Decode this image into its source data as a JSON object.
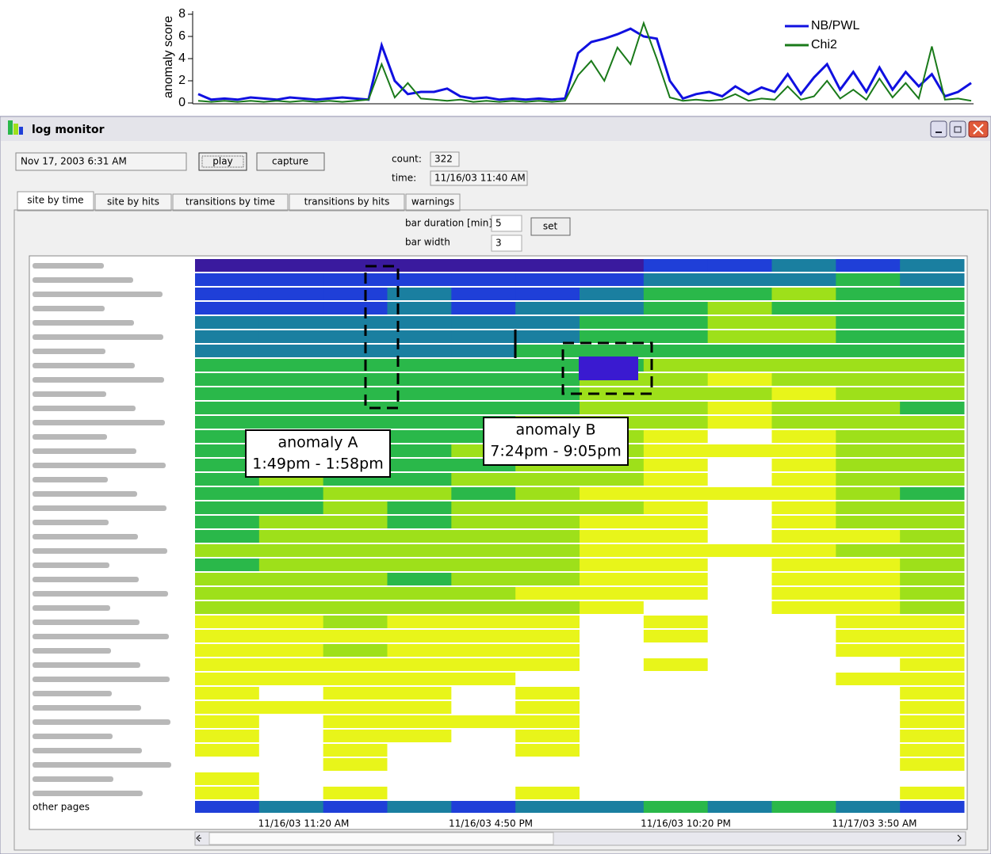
{
  "chart_data": {
    "type": "line",
    "y_label": "anomaly score",
    "ylim": [
      0,
      8
    ],
    "yticks": [
      0,
      2,
      4,
      6,
      8
    ],
    "legend": "upper-right",
    "series": [
      {
        "name": "NB/PWL",
        "color": "#1010e0",
        "values": [
          0.8,
          0.3,
          0.4,
          0.3,
          0.5,
          0.4,
          0.3,
          0.5,
          0.4,
          0.3,
          0.4,
          0.5,
          0.4,
          0.3,
          5.2,
          2.0,
          0.8,
          1.0,
          1.0,
          1.3,
          0.6,
          0.4,
          0.5,
          0.3,
          0.4,
          0.3,
          0.4,
          0.3,
          0.4,
          4.5,
          5.5,
          5.8,
          6.2,
          6.7,
          6.0,
          5.8,
          2.0,
          0.4,
          0.8,
          1.0,
          0.6,
          1.5,
          0.8,
          1.4,
          1.0,
          2.6,
          0.8,
          2.3,
          3.5,
          1.2,
          2.8,
          1.0,
          3.2,
          1.2,
          2.8,
          1.5,
          2.6,
          0.6,
          1.0,
          1.8
        ]
      },
      {
        "name": "Chi2",
        "color": "#1a7a1a",
        "values": [
          0.2,
          0.1,
          0.2,
          0.1,
          0.2,
          0.1,
          0.2,
          0.1,
          0.2,
          0.1,
          0.2,
          0.1,
          0.2,
          0.3,
          3.5,
          0.5,
          1.8,
          0.4,
          0.3,
          0.2,
          0.3,
          0.1,
          0.2,
          0.1,
          0.2,
          0.1,
          0.2,
          0.1,
          0.2,
          2.5,
          3.8,
          2.0,
          5.0,
          3.5,
          7.2,
          4.0,
          0.5,
          0.2,
          0.3,
          0.2,
          0.3,
          0.8,
          0.2,
          0.4,
          0.3,
          1.5,
          0.3,
          0.6,
          2.0,
          0.4,
          1.2,
          0.3,
          2.2,
          0.5,
          1.8,
          0.4,
          5.1,
          0.3,
          0.4,
          0.2
        ]
      }
    ]
  },
  "window": {
    "title": "log monitor",
    "date_field": "Nov 17, 2003 6:31 AM",
    "play": "play",
    "capture": "capture",
    "count_label": "count:",
    "count": 322,
    "time_label": "time:",
    "time": "11/16/03 11:40 AM",
    "tabs": [
      "site by time",
      "site by hits",
      "transitions by time",
      "transitions by hits",
      "warnings"
    ],
    "bar_duration_label": "bar duration [min]",
    "bar_duration": 5,
    "bar_width_label": "bar width",
    "bar_width": 3,
    "set": "set"
  },
  "heatmap": {
    "level_colors": [
      "#3a1a9e",
      "#1f3fd8",
      "#1a7fa0",
      "#2ab84a",
      "#9ee01a",
      "#e8f51a",
      "#ffffff"
    ],
    "rows": [
      [
        0,
        0,
        0,
        0,
        0,
        0,
        0,
        1,
        1,
        2,
        1,
        2
      ],
      [
        1,
        1,
        1,
        1,
        1,
        1,
        1,
        2,
        2,
        2,
        3,
        2
      ],
      [
        1,
        1,
        1,
        2,
        1,
        1,
        2,
        3,
        3,
        4,
        3,
        3
      ],
      [
        1,
        1,
        1,
        2,
        1,
        2,
        2,
        3,
        4,
        3,
        3,
        3
      ],
      [
        2,
        2,
        2,
        2,
        2,
        2,
        3,
        3,
        4,
        4,
        3,
        3
      ],
      [
        2,
        2,
        2,
        2,
        2,
        2,
        3,
        3,
        4,
        4,
        3,
        3
      ],
      [
        2,
        2,
        2,
        2,
        2,
        3,
        3,
        3,
        3,
        3,
        3,
        3
      ],
      [
        3,
        3,
        3,
        3,
        3,
        3,
        3,
        4,
        4,
        4,
        4,
        4
      ],
      [
        3,
        3,
        3,
        3,
        3,
        3,
        4,
        4,
        5,
        4,
        4,
        4
      ],
      [
        3,
        3,
        3,
        3,
        3,
        3,
        4,
        4,
        4,
        5,
        4,
        4
      ],
      [
        3,
        3,
        3,
        3,
        3,
        3,
        4,
        4,
        5,
        4,
        4,
        3
      ],
      [
        3,
        3,
        3,
        3,
        3,
        4,
        4,
        4,
        5,
        4,
        4,
        4
      ],
      [
        3,
        3,
        4,
        3,
        3,
        4,
        4,
        5,
        6,
        5,
        4,
        4
      ],
      [
        3,
        3,
        3,
        3,
        4,
        4,
        4,
        5,
        5,
        5,
        4,
        4
      ],
      [
        3,
        3,
        4,
        3,
        3,
        4,
        4,
        5,
        6,
        5,
        4,
        4
      ],
      [
        3,
        4,
        3,
        3,
        4,
        4,
        4,
        5,
        6,
        5,
        4,
        4
      ],
      [
        3,
        3,
        4,
        4,
        3,
        4,
        5,
        5,
        5,
        5,
        4,
        3
      ],
      [
        3,
        3,
        4,
        3,
        4,
        4,
        4,
        5,
        6,
        5,
        4,
        4
      ],
      [
        3,
        4,
        4,
        3,
        4,
        4,
        5,
        5,
        6,
        5,
        4,
        4
      ],
      [
        3,
        4,
        4,
        4,
        4,
        4,
        5,
        5,
        6,
        5,
        5,
        4
      ],
      [
        4,
        4,
        4,
        4,
        4,
        4,
        5,
        5,
        5,
        5,
        4,
        4
      ],
      [
        3,
        4,
        4,
        4,
        4,
        4,
        5,
        5,
        6,
        5,
        5,
        4
      ],
      [
        4,
        4,
        4,
        3,
        4,
        4,
        5,
        5,
        6,
        5,
        5,
        4
      ],
      [
        4,
        4,
        4,
        4,
        4,
        5,
        5,
        5,
        6,
        5,
        5,
        4
      ],
      [
        4,
        4,
        4,
        4,
        4,
        4,
        5,
        6,
        6,
        5,
        5,
        4
      ],
      [
        5,
        5,
        4,
        5,
        5,
        5,
        6,
        5,
        6,
        6,
        5,
        5
      ],
      [
        5,
        5,
        5,
        5,
        5,
        5,
        6,
        5,
        6,
        6,
        5,
        5
      ],
      [
        5,
        5,
        4,
        5,
        5,
        5,
        6,
        6,
        6,
        6,
        5,
        5
      ],
      [
        5,
        5,
        5,
        5,
        5,
        5,
        6,
        5,
        6,
        6,
        6,
        5
      ],
      [
        5,
        5,
        5,
        5,
        5,
        6,
        6,
        6,
        6,
        6,
        5,
        5
      ],
      [
        5,
        6,
        5,
        5,
        6,
        5,
        6,
        6,
        6,
        6,
        6,
        5
      ],
      [
        5,
        5,
        5,
        5,
        6,
        5,
        6,
        6,
        6,
        6,
        6,
        5
      ],
      [
        5,
        6,
        5,
        5,
        5,
        5,
        6,
        6,
        6,
        6,
        6,
        5
      ],
      [
        5,
        6,
        5,
        5,
        6,
        5,
        6,
        6,
        6,
        6,
        6,
        5
      ],
      [
        5,
        6,
        5,
        6,
        6,
        5,
        6,
        6,
        6,
        6,
        6,
        5
      ],
      [
        6,
        6,
        5,
        6,
        6,
        6,
        6,
        6,
        6,
        6,
        6,
        5
      ],
      [
        5,
        6,
        6,
        6,
        6,
        6,
        6,
        6,
        6,
        6,
        6,
        6
      ],
      [
        5,
        6,
        5,
        6,
        6,
        5,
        6,
        6,
        6,
        6,
        6,
        5
      ]
    ],
    "other_row": {
      "label": "other pages",
      "values": [
        1,
        2,
        1,
        2,
        1,
        2,
        2,
        3,
        2,
        3,
        2,
        1
      ]
    },
    "x_labels": [
      "11/16/03 11:20 AM",
      "11/16/03 4:50 PM",
      "11/16/03 10:20 PM",
      "11/17/03 3:50 AM"
    ]
  },
  "annotations": [
    {
      "label": "anomaly A",
      "range": "1:49pm - 1:58pm"
    },
    {
      "label": "anomaly B",
      "range": "7:24pm - 9:05pm"
    }
  ]
}
